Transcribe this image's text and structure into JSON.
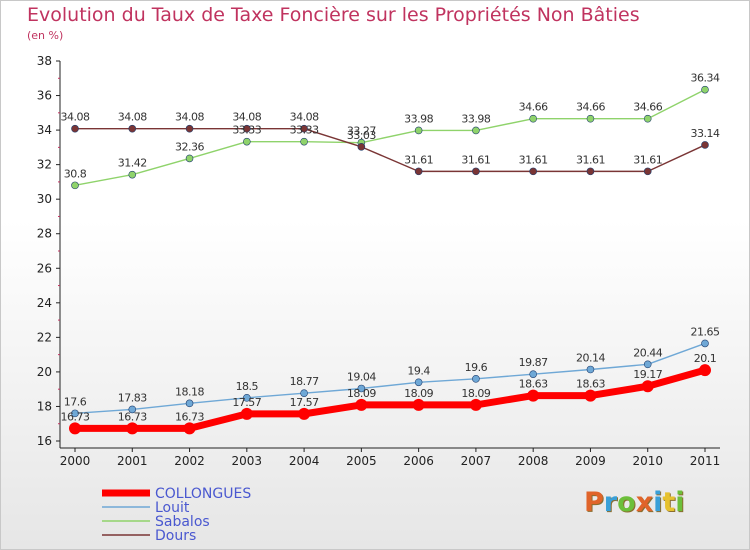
{
  "page": {
    "title": "Evolution du Taux de Taxe Foncière sur les Propriétés Non Bâties",
    "subtitle": "(en %)"
  },
  "logo": {
    "letters": [
      "P",
      "r",
      "o",
      "x",
      "i",
      "t",
      "i"
    ],
    "colors": [
      "#e0642a",
      "#3aa0d8",
      "#6cbf3a",
      "#e0642a",
      "#3aa0d8",
      "#e6c12e",
      "#6cbf3a"
    ]
  },
  "chart_data": {
    "type": "line",
    "title": "Evolution du Taux de Taxe Foncière sur les Propriétés Non Bâties",
    "ylabel": "(en %)",
    "xlabel": "",
    "x": [
      "2000",
      "2001",
      "2002",
      "2003",
      "2004",
      "2005",
      "2006",
      "2007",
      "2008",
      "2009",
      "2010",
      "2011"
    ],
    "ylim": [
      16,
      38
    ],
    "yticks": [
      16,
      18,
      20,
      22,
      24,
      26,
      28,
      30,
      32,
      34,
      36,
      38
    ],
    "grid": false,
    "legend": "bottom-left",
    "series": [
      {
        "name": "COLLONGUES",
        "color": "#ff0000",
        "values": [
          16.73,
          16.73,
          16.73,
          17.57,
          17.57,
          18.09,
          18.09,
          18.09,
          18.63,
          18.63,
          19.17,
          20.1
        ],
        "labels": [
          "16.73",
          "16.73",
          "16.73",
          "17.57",
          "17.57",
          "18.09",
          "18.09",
          "18.09",
          "18.63",
          "18.63",
          "19.17",
          "20.1"
        ]
      },
      {
        "name": "Louit",
        "color": "#6fa8d6",
        "values": [
          17.6,
          17.83,
          18.18,
          18.5,
          18.77,
          19.04,
          19.4,
          19.6,
          19.87,
          20.14,
          20.44,
          21.65
        ],
        "labels": [
          "17.6",
          "17.83",
          "18.18",
          "18.5",
          "18.77",
          "19.04",
          "19.4",
          "19.6",
          "19.87",
          "20.14",
          "20.44",
          "21.65"
        ]
      },
      {
        "name": "Sabalos",
        "color": "#8fd36b",
        "values": [
          30.8,
          31.42,
          32.36,
          33.33,
          33.33,
          33.27,
          33.98,
          33.98,
          34.66,
          34.66,
          34.66,
          36.34
        ],
        "labels": [
          "30.8",
          "31.42",
          "32.36",
          "33.33",
          "33.33",
          "33.27",
          "33.98",
          "33.98",
          "34.66",
          "34.66",
          "34.66",
          "36.34"
        ]
      },
      {
        "name": "Dours",
        "color": "#7a3535",
        "values": [
          34.08,
          34.08,
          34.08,
          34.08,
          34.08,
          33.03,
          31.61,
          31.61,
          31.61,
          31.61,
          31.61,
          33.14
        ],
        "labels": [
          "34.08",
          "34.08",
          "34.08",
          "34.08",
          "34.08",
          "33.03",
          "31.61",
          "31.61",
          "31.61",
          "31.61",
          "31.61",
          "33.14"
        ]
      }
    ]
  }
}
